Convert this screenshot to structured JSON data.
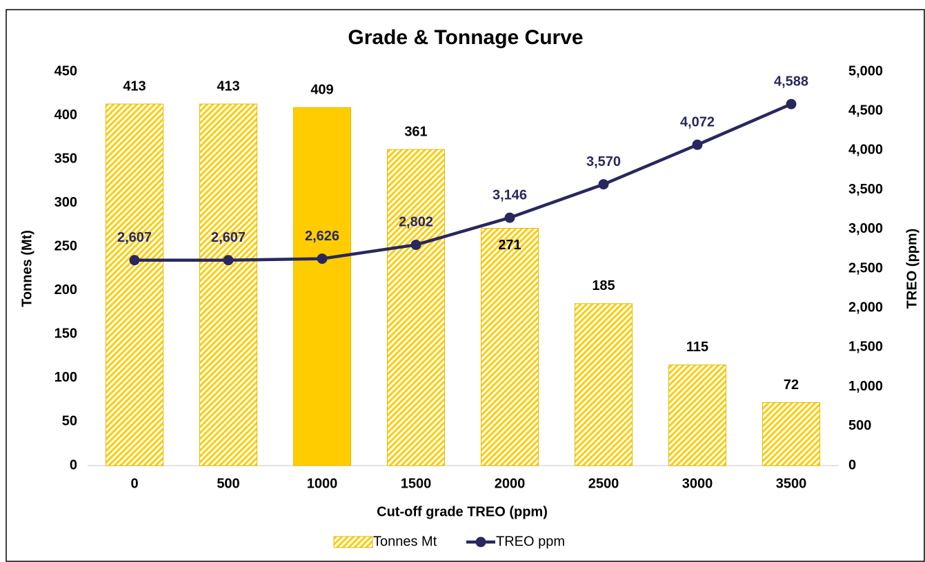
{
  "chart_data": {
    "type": "bar-line",
    "title": "Grade & Tonnage Curve",
    "x_label": "Cut-off grade TREO (ppm)",
    "y_label": "Tonnes (Mt)",
    "y2_label": "TREO (ppm)",
    "categories": [
      "0",
      "500",
      "1000",
      "1500",
      "2000",
      "2500",
      "3000",
      "3500"
    ],
    "series": [
      {
        "name": "Tonnes Mt",
        "type": "bar",
        "color": "#ffcc00",
        "fills": [
          "hatch",
          "hatch",
          "solid",
          "hatch",
          "hatch",
          "hatch",
          "hatch",
          "hatch"
        ],
        "values": [
          413,
          413,
          409,
          361,
          271,
          185,
          115,
          72
        ]
      },
      {
        "name": "TREO ppm",
        "type": "line",
        "axis": "y2",
        "color": "#28285e",
        "values": [
          2607,
          2607,
          2626,
          2802,
          3146,
          3570,
          4072,
          4588
        ],
        "value_labels": [
          "2,607",
          "2,607",
          "2,626",
          "2,802",
          "3,146",
          "3,570",
          "4,072",
          "4,588"
        ]
      }
    ],
    "ylim": [
      0,
      450
    ],
    "yticks": [
      0,
      50,
      100,
      150,
      200,
      250,
      300,
      350,
      400,
      450
    ],
    "y2lim": [
      0,
      5000
    ],
    "y2ticks": [
      0,
      500,
      {
        "value": 1000,
        "label": "1,000"
      },
      {
        "value": 1500,
        "label": "1,500"
      },
      {
        "value": 2000,
        "label": "2,000"
      },
      {
        "value": 2500,
        "label": "2,500"
      },
      {
        "value": 3000,
        "label": "3,000"
      },
      {
        "value": 3500,
        "label": "3,500"
      },
      {
        "value": 4000,
        "label": "4,000"
      },
      {
        "value": 4500,
        "label": "4,500"
      },
      {
        "value": 5000,
        "label": "5,000"
      }
    ],
    "grid": false,
    "legend": "bottom"
  }
}
